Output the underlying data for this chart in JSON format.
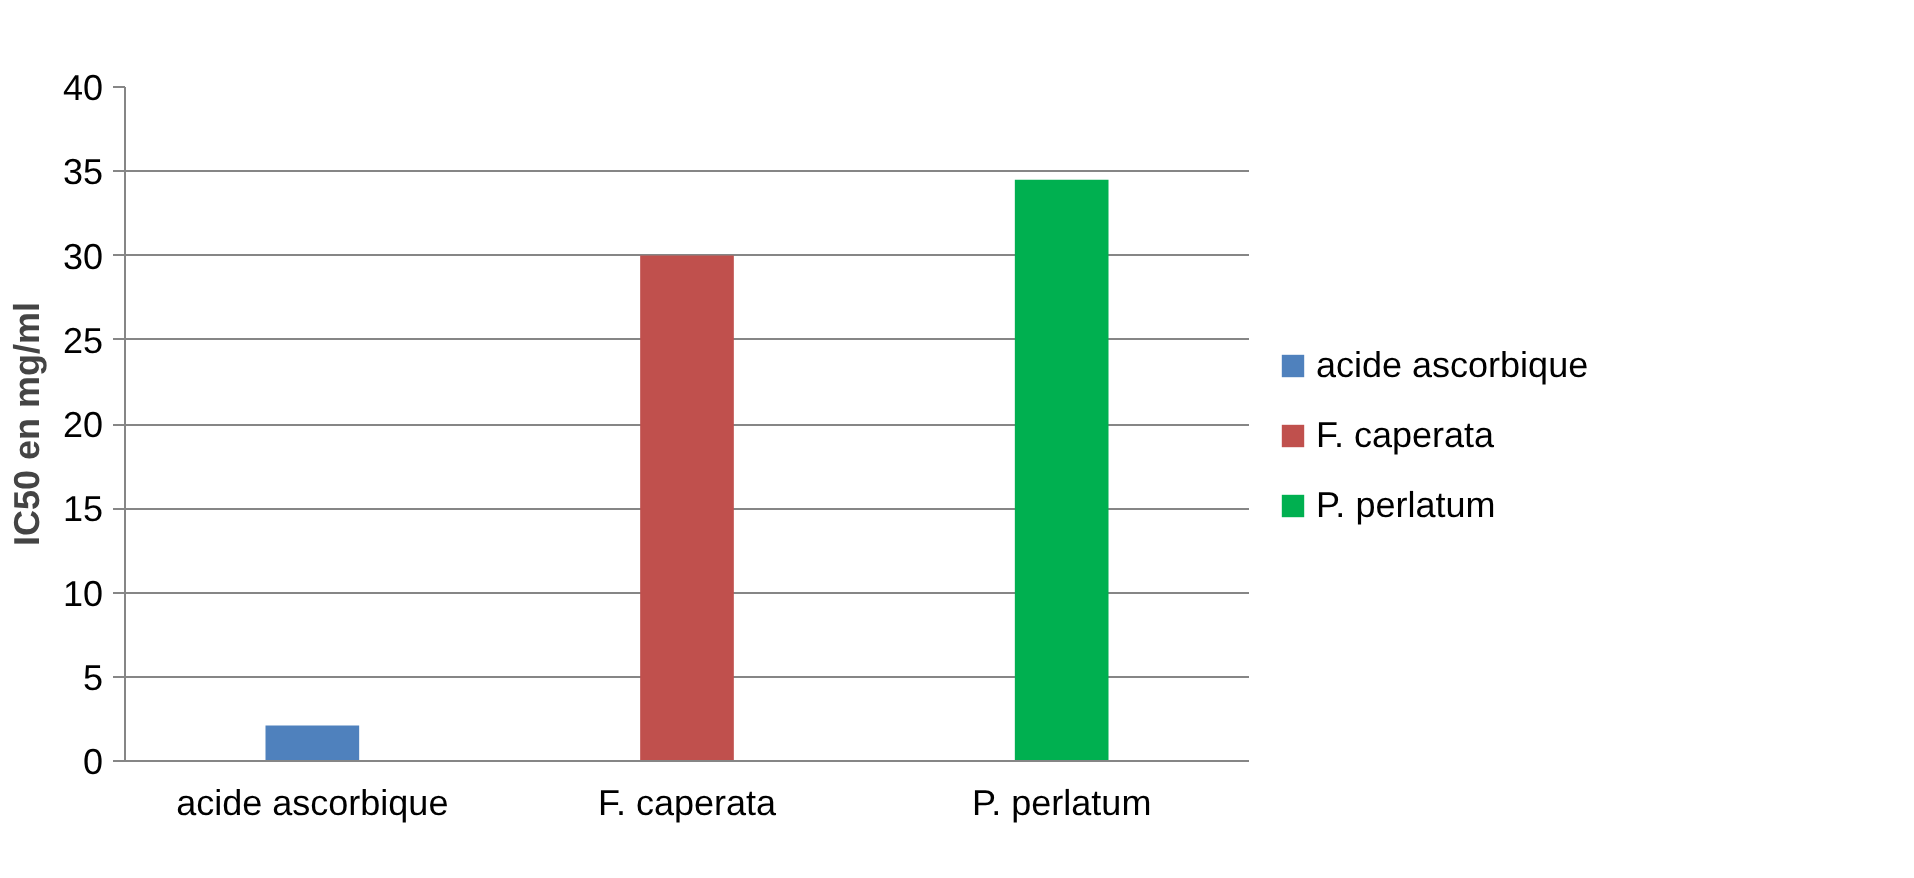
{
  "chart_data": {
    "type": "bar",
    "ylabel": "IC50 en mg/ml",
    "categories": [
      "acide ascorbique",
      "F. caperata",
      "P. perlatum"
    ],
    "series": [
      {
        "name": "acide ascorbique",
        "color": "#4f81bd",
        "values": [
          2.1,
          null,
          null
        ]
      },
      {
        "name": "F. caperata",
        "color": "#c0504d",
        "values": [
          null,
          30,
          null
        ]
      },
      {
        "name": "P. perlatum",
        "color": "#00b050",
        "values": [
          null,
          null,
          34.5
        ]
      }
    ],
    "ylim": [
      0,
      40
    ],
    "yticks": [
      0,
      5,
      10,
      15,
      20,
      25,
      30,
      35,
      40
    ],
    "grid": "y",
    "legend": "right"
  }
}
